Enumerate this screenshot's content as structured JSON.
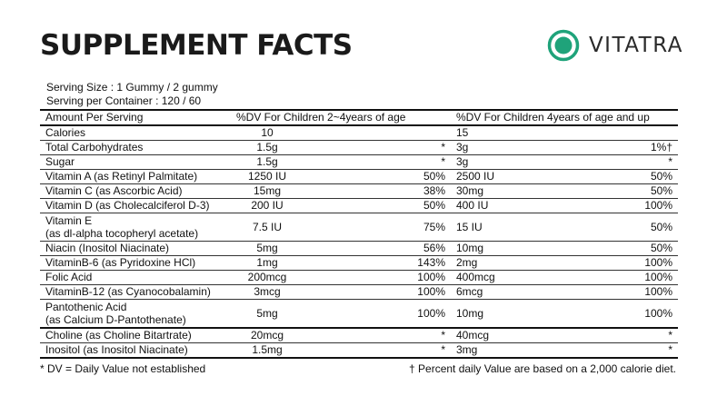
{
  "title": "SUPPLEMENT FACTS",
  "brand": {
    "name": "VITATRA",
    "icon": "vitatra-logo-icon",
    "accent": "#1fa37a"
  },
  "serving": {
    "size": "Serving Size : 1 Gummy / 2 gummy",
    "per_container": "Serving per  Container :  120 / 60"
  },
  "table": {
    "headers": [
      "Amount Per Serving",
      "%DV For Children 2~4years of age",
      "%DV For Children 4years of age and up"
    ],
    "rows": [
      {
        "name": "Calories",
        "amount1": "10",
        "dv1": "",
        "amount2": "15",
        "dv2": ""
      },
      {
        "name": "Total Carbohydrates",
        "amount1": "1.5g",
        "dv1": "*",
        "amount2": "3g",
        "dv2": "1%†"
      },
      {
        "name": "Sugar",
        "amount1": "1.5g",
        "dv1": "*",
        "amount2": "3g",
        "dv2": "*"
      },
      {
        "name": "Vitamin A (as Retinyl Palmitate)",
        "amount1": "1250 IU",
        "dv1": "50%",
        "amount2": "2500 IU",
        "dv2": "50%"
      },
      {
        "name": "Vitamin C (as Ascorbic Acid)",
        "amount1": "15mg",
        "dv1": "38%",
        "amount2": "30mg",
        "dv2": "50%"
      },
      {
        "name": "Vitamin D (as Cholecalciferol D-3)",
        "amount1": "200 IU",
        "dv1": "50%",
        "amount2": "400 IU",
        "dv2": "100%"
      },
      {
        "name": "Vitamin E",
        "name2": "(as dl-alpha tocopheryl acetate)",
        "amount1": "7.5 IU",
        "dv1": "75%",
        "amount2": "15 IU",
        "dv2": "50%"
      },
      {
        "name": "Niacin (Inositol Niacinate)",
        "amount1": "5mg",
        "dv1": "56%",
        "amount2": "10mg",
        "dv2": "50%"
      },
      {
        "name": "VitaminB-6 (as Pyridoxine HCl)",
        "amount1": "1mg",
        "dv1": "143%",
        "amount2": "2mg",
        "dv2": "100%"
      },
      {
        "name": "Folic Acid",
        "amount1": "200mcg",
        "dv1": "100%",
        "amount2": "400mcg",
        "dv2": "100%"
      },
      {
        "name": "VitaminB-12 (as Cyanocobalamin)",
        "amount1": "3mcg",
        "dv1": "100%",
        "amount2": "6mcg",
        "dv2": "100%"
      },
      {
        "name": "Pantothenic Acid",
        "name2": "(as Calcium D-Pantothenate)",
        "amount1": "5mg",
        "dv1": "100%",
        "amount2": "10mg",
        "dv2": "100%"
      },
      {
        "name": "Choline (as Choline Bitartrate)",
        "amount1": "20mcg",
        "dv1": "*",
        "amount2": "40mcg",
        "dv2": "*"
      },
      {
        "name": "Inositol (as Inositol Niacinate)",
        "amount1": "1.5mg",
        "dv1": "*",
        "amount2": "3mg",
        "dv2": "*"
      }
    ]
  },
  "footer": {
    "left": "* DV = Daily Value not established",
    "right": "† Percent daily Value are based on a 2,000 calorie diet."
  }
}
